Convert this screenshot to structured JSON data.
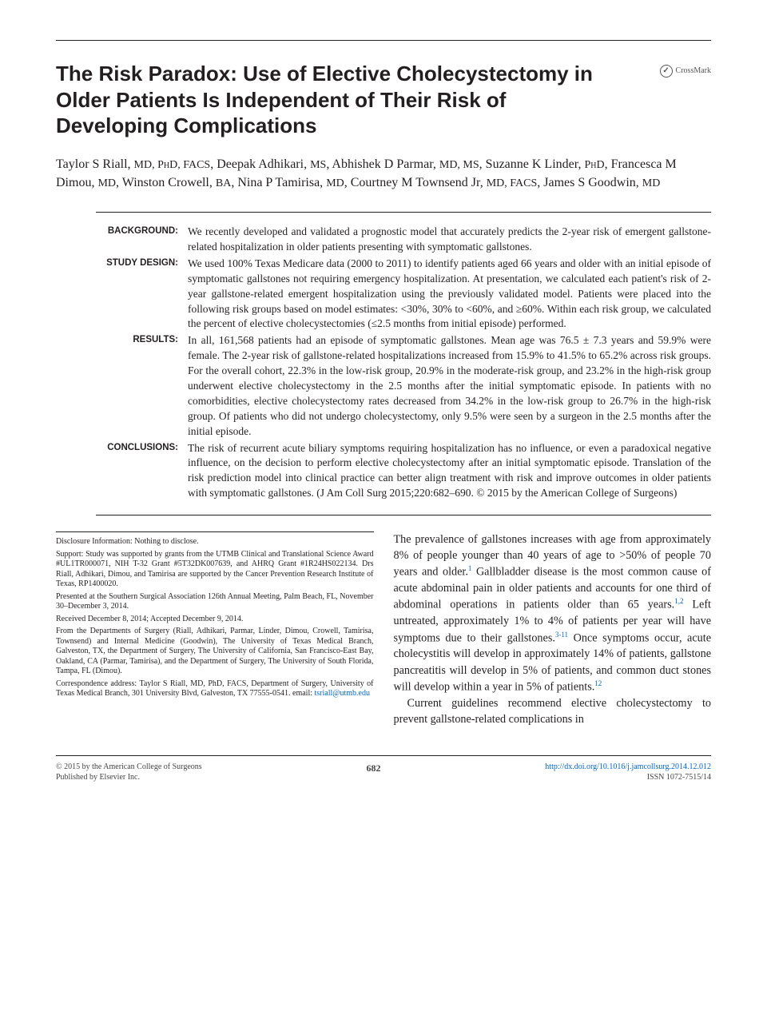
{
  "crossmark": "CrossMark",
  "title": "The Risk Paradox: Use of Elective Cholecystectomy in Older Patients Is Independent of Their Risk of Developing Complications",
  "authors_html": "Taylor S Riall, <span class=\"sc\">MD, PhD, FACS</span>, Deepak Adhikari, <span class=\"sc\">MS</span>, Abhishek D Parmar, <span class=\"sc\">MD, MS</span>, Suzanne K Linder, <span class=\"sc\">PhD</span>, Francesca M Dimou, <span class=\"sc\">MD</span>, Winston Crowell, <span class=\"sc\">BA</span>, Nina P Tamirisa, <span class=\"sc\">MD</span>, Courtney M Townsend Jr, <span class=\"sc\">MD, FACS</span>, James S Goodwin, <span class=\"sc\">MD</span>",
  "abstract": {
    "rows": [
      {
        "label": "BACKGROUND:",
        "text": "We recently developed and validated a prognostic model that accurately predicts the 2-year risk of emergent gallstone-related hospitalization in older patients presenting with symptomatic gallstones."
      },
      {
        "label": "STUDY DESIGN:",
        "text": "We used 100% Texas Medicare data (2000 to 2011) to identify patients aged 66 years and older with an initial episode of symptomatic gallstones not requiring emergency hospitalization. At presentation, we calculated each patient's risk of 2-year gallstone-related emergent hospitalization using the previously validated model. Patients were placed into the following risk groups based on model estimates: <30%, 30% to <60%, and ≥60%. Within each risk group, we calculated the percent of elective cholecystectomies (≤2.5 months from initial episode) performed."
      },
      {
        "label": "RESULTS:",
        "text": "In all, 161,568 patients had an episode of symptomatic gallstones. Mean age was 76.5 ± 7.3 years and 59.9% were female. The 2-year risk of gallstone-related hospitalizations increased from 15.9% to 41.5% to 65.2% across risk groups. For the overall cohort, 22.3% in the low-risk group, 20.9% in the moderate-risk group, and 23.2% in the high-risk group underwent elective cholecystectomy in the 2.5 months after the initial symptomatic episode. In patients with no comorbidities, elective cholecystectomy rates decreased from 34.2% in the low-risk group to 26.7% in the high-risk group. Of patients who did not undergo cholecystectomy, only 9.5% were seen by a surgeon in the 2.5 months after the initial episode."
      },
      {
        "label": "CONCLUSIONS:",
        "text": "The risk of recurrent acute biliary symptoms requiring hospitalization has no influence, or even a paradoxical negative influence, on the decision to perform elective cholecystectomy after an initial symptomatic episode. Translation of the risk prediction model into clinical practice can better align treatment with risk and improve outcomes in older patients with symptomatic gallstones. (J Am Coll Surg 2015;220:682–690. © 2015 by the American College of Surgeons)"
      }
    ]
  },
  "footnotes": [
    "Disclosure Information: Nothing to disclose.",
    "Support: Study was supported by grants from the UTMB Clinical and Translational Science Award #UL1TR000071, NIH T-32 Grant #5T32DK007639, and AHRQ Grant #1R24HS022134. Drs Riall, Adhikari, Dimou, and Tamirisa are supported by the Cancer Prevention Research Institute of Texas, RP1400020.",
    "Presented at the Southern Surgical Association 126th Annual Meeting, Palm Beach, FL, November 30–December 3, 2014.",
    "Received December 8, 2014; Accepted December 9, 2014.",
    "From the Departments of Surgery (Riall, Adhikari, Parmar, Linder, Dimou, Crowell, Tamirisa, Townsend) and Internal Medicine (Goodwin), The University of Texas Medical Branch, Galveston, TX, the Department of Surgery, The University of California, San Francisco-East Bay, Oakland, CA (Parmar, Tamirisa), and the Department of Surgery, The University of South Florida, Tampa, FL (Dimou).",
    "Correspondence address: Taylor S Riall, MD, PhD, FACS, Department of Surgery, University of Texas Medical Branch, 301 University Blvd, Galveston, TX 77555-0541. email: <a href=\"#\">tsriall@utmb.edu</a>"
  ],
  "body": [
    "The prevalence of gallstones increases with age from approximately 8% of people younger than 40 years of age to >50% of people 70 years and older.<sup>1</sup> Gallbladder disease is the most common cause of acute abdominal pain in older patients and accounts for one third of abdominal operations in patients older than 65 years.<sup>1,2</sup> Left untreated, approximately 1% to 4% of patients per year will have symptoms due to their gallstones.<sup>3-11</sup> Once symptoms occur, acute cholecystitis will develop in approximately 14% of patients, gallstone pancreatitis will develop in 5% of patients, and common duct stones will develop within a year in 5% of patients.<sup>12</sup>",
    "Current guidelines recommend elective cholecystectomy to prevent gallstone-related complications in"
  ],
  "footer": {
    "left1": "© 2015 by the American College of Surgeons",
    "left2": "Published by Elsevier Inc.",
    "page": "682",
    "right1": "http://dx.doi.org/10.1016/j.jamcollsurg.2014.12.012",
    "right2": "ISSN 1072-7515/14"
  }
}
